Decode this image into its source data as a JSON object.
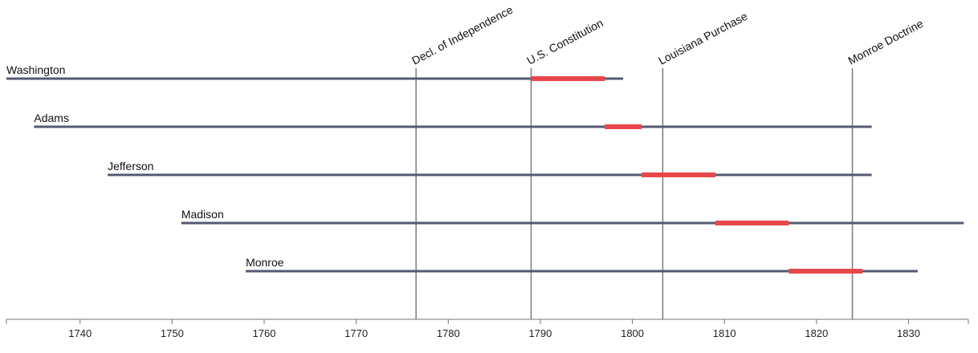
{
  "chart_data": {
    "type": "timeline",
    "title": "",
    "xlabel": "",
    "ylabel": "",
    "xlim": [
      1732,
      1836.5
    ],
    "ticks": [
      1740,
      1750,
      1760,
      1770,
      1780,
      1790,
      1800,
      1810,
      1820,
      1830
    ],
    "tick_labels": [
      "1740",
      "1750",
      "1760",
      "1770",
      "1780",
      "1790",
      "1800",
      "1810",
      "1820",
      "1830"
    ],
    "grid": false,
    "legend": "none",
    "lifespans": [
      {
        "name": "Washington",
        "birth": 1732,
        "death": 1799,
        "term_start": 1789,
        "term_end": 1797
      },
      {
        "name": "Adams",
        "birth": 1735,
        "death": 1826,
        "term_start": 1797,
        "term_end": 1801
      },
      {
        "name": "Jefferson",
        "birth": 1743,
        "death": 1826,
        "term_start": 1801,
        "term_end": 1809
      },
      {
        "name": "Madison",
        "birth": 1751,
        "death": 1836,
        "term_start": 1809,
        "term_end": 1817
      },
      {
        "name": "Monroe",
        "birth": 1758,
        "death": 1831,
        "term_start": 1817,
        "term_end": 1825
      }
    ],
    "events": [
      {
        "label": "Decl. of Independence",
        "year": 1776.5
      },
      {
        "label": "U.S. Constitution",
        "year": 1789
      },
      {
        "label": "Louisiana Purchase",
        "year": 1803.3
      },
      {
        "label": "Monroe Doctrine",
        "year": 1823.9
      }
    ],
    "colors": {
      "lifespan": "#555a70",
      "term": "#e8474a",
      "event_line": "#7a7a7a",
      "axis": "#777777"
    }
  }
}
